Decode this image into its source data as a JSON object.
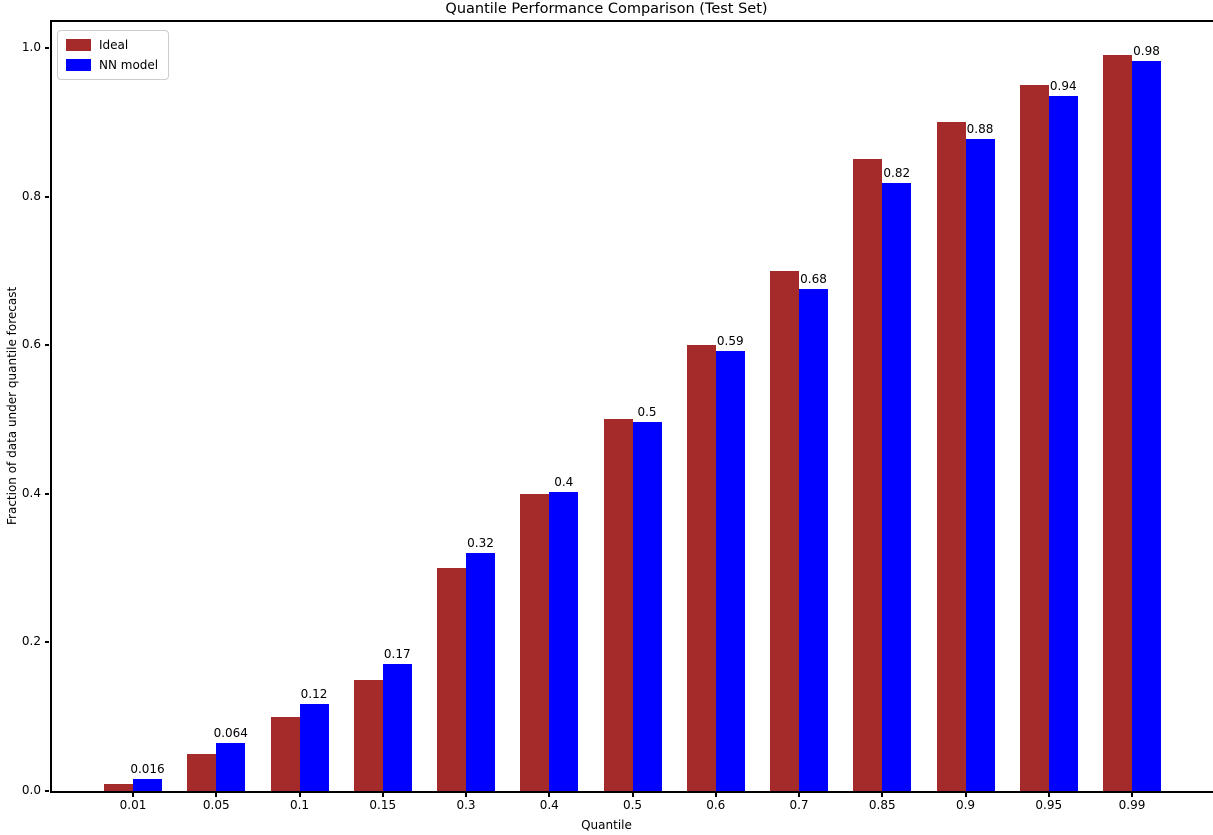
{
  "chart_data": {
    "type": "bar",
    "title": "Quantile Performance Comparison (Test Set)",
    "xlabel": "Quantile",
    "ylabel": "Fraction of data under quantile forecast",
    "categories": [
      "0.01",
      "0.05",
      "0.1",
      "0.15",
      "0.3",
      "0.4",
      "0.5",
      "0.6",
      "0.7",
      "0.85",
      "0.9",
      "0.95",
      "0.99"
    ],
    "series": [
      {
        "name": "Ideal",
        "color": "#a52a2a",
        "values": [
          0.01,
          0.05,
          0.1,
          0.15,
          0.3,
          0.4,
          0.5,
          0.6,
          0.7,
          0.85,
          0.9,
          0.95,
          0.99
        ]
      },
      {
        "name": "NN model",
        "color": "#0000ff",
        "values": [
          0.016,
          0.064,
          0.117,
          0.171,
          0.32,
          0.403,
          0.497,
          0.592,
          0.675,
          0.818,
          0.878,
          0.935,
          0.983
        ],
        "bar_labels": [
          "0.016",
          "0.064",
          "0.12",
          "0.17",
          "0.32",
          "0.4",
          "0.5",
          "0.59",
          "0.68",
          "0.82",
          "0.88",
          "0.94",
          "0.98"
        ]
      }
    ],
    "y_ticks": [
      "0.0",
      "0.2",
      "0.4",
      "0.6",
      "0.8",
      "1.0"
    ],
    "ylim": [
      0,
      1.038
    ],
    "legend": {
      "position": "upper left"
    },
    "grid": false,
    "background": "#ffffff"
  }
}
